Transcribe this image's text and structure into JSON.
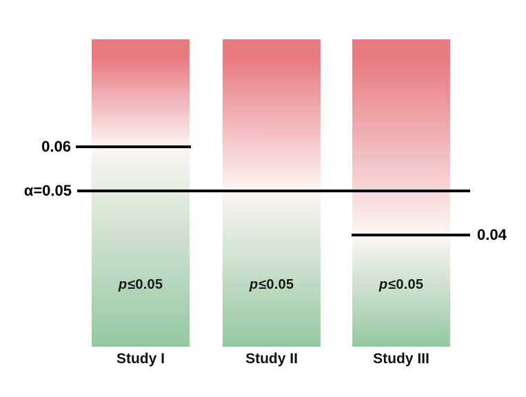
{
  "chart_data": {
    "type": "bar",
    "title": "",
    "description": "Three study columns with red-to-green gradient bars showing each study's p-value boundary relative to the significance threshold",
    "categories": [
      "Study I",
      "Study II",
      "Study III"
    ],
    "series": [
      {
        "name": "p-value boundary",
        "values": [
          0.06,
          0.05,
          0.04
        ]
      }
    ],
    "region_label": {
      "prefix": "p",
      "suffix": "≤0.05"
    },
    "reference_lines": [
      {
        "label": "0.06",
        "value": 0.06,
        "label_side": "left",
        "extent": "study-1"
      },
      {
        "label": "α=0.05",
        "value": 0.05,
        "label_side": "left",
        "extent": "full-width"
      },
      {
        "label": "0.04",
        "value": 0.04,
        "label_side": "right",
        "extent": "study-3"
      }
    ],
    "colors": {
      "red_top": "#e87a80",
      "white_mid": "#fcf6f4",
      "green_bottom": "#94c8a0",
      "line": "#000000",
      "text": "#111111"
    },
    "layout_hints": {
      "legend": "none",
      "grid": "off",
      "value_axis_direction": "higher values toward top"
    }
  }
}
